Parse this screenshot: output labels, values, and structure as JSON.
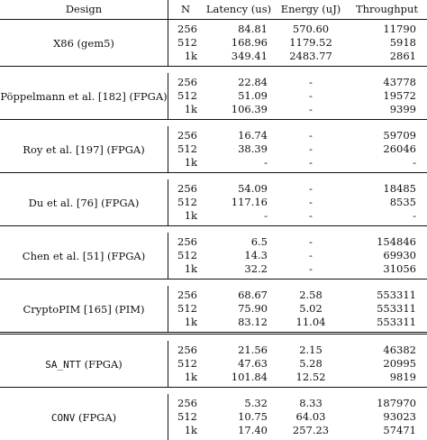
{
  "headers": {
    "design": "Design",
    "n": "N",
    "latency": "Latency (us)",
    "energy": "Energy (uJ)",
    "throughput": "Throughput"
  },
  "groups": [
    {
      "design": "X86 (gem5)",
      "design_mono": "",
      "design_suffix": "",
      "rows": [
        {
          "n": "256",
          "latency": "84.81",
          "energy": "570.60",
          "throughput": "11790"
        },
        {
          "n": "512",
          "latency": "168.96",
          "energy": "1179.52",
          "throughput": "5918"
        },
        {
          "n": "1k",
          "latency": "349.41",
          "energy": "2483.77",
          "throughput": "2861"
        }
      ]
    },
    {
      "design": "Pöppelmann et al. [182] (FPGA)",
      "design_mono": "",
      "design_suffix": "",
      "rows": [
        {
          "n": "256",
          "latency": "22.84",
          "energy": "-",
          "throughput": "43778"
        },
        {
          "n": "512",
          "latency": "51.09",
          "energy": "-",
          "throughput": "19572"
        },
        {
          "n": "1k",
          "latency": "106.39",
          "energy": "-",
          "throughput": "9399"
        }
      ]
    },
    {
      "design": "Roy et al. [197] (FPGA)",
      "design_mono": "",
      "design_suffix": "",
      "rows": [
        {
          "n": "256",
          "latency": "16.74",
          "energy": "-",
          "throughput": "59709"
        },
        {
          "n": "512",
          "latency": "38.39",
          "energy": "-",
          "throughput": "26046"
        },
        {
          "n": "1k",
          "latency": "-",
          "energy": "-",
          "throughput": "-"
        }
      ]
    },
    {
      "design": "Du et al. [76] (FPGA)",
      "design_mono": "",
      "design_suffix": "",
      "rows": [
        {
          "n": "256",
          "latency": "54.09",
          "energy": "-",
          "throughput": "18485"
        },
        {
          "n": "512",
          "latency": "117.16",
          "energy": "-",
          "throughput": "8535"
        },
        {
          "n": "1k",
          "latency": "-",
          "energy": "-",
          "throughput": "-"
        }
      ]
    },
    {
      "design": "Chen et al. [51] (FPGA)",
      "design_mono": "",
      "design_suffix": "",
      "rows": [
        {
          "n": "256",
          "latency": "6.5",
          "energy": "-",
          "throughput": "154846"
        },
        {
          "n": "512",
          "latency": "14.3",
          "energy": "-",
          "throughput": "69930"
        },
        {
          "n": "1k",
          "latency": "32.2",
          "energy": "-",
          "throughput": "31056"
        }
      ]
    },
    {
      "design": "CryptoPIM [165] (PIM)",
      "design_mono": "",
      "design_suffix": "",
      "rows": [
        {
          "n": "256",
          "latency": "68.67",
          "energy": "2.58",
          "throughput": "553311"
        },
        {
          "n": "512",
          "latency": "75.90",
          "energy": "5.02",
          "throughput": "553311"
        },
        {
          "n": "1k",
          "latency": "83.12",
          "energy": "11.04",
          "throughput": "553311"
        }
      ]
    },
    {
      "design": "",
      "design_mono": "SA_NTT",
      "design_suffix": " (FPGA)",
      "rows": [
        {
          "n": "256",
          "latency": "21.56",
          "energy": "2.15",
          "throughput": "46382"
        },
        {
          "n": "512",
          "latency": "47.63",
          "energy": "5.28",
          "throughput": "20995"
        },
        {
          "n": "1k",
          "latency": "101.84",
          "energy": "12.52",
          "throughput": "9819"
        }
      ]
    },
    {
      "design": "",
      "design_mono": "CONV",
      "design_suffix": " (FPGA)",
      "rows": [
        {
          "n": "256",
          "latency": "5.32",
          "energy": "8.33",
          "throughput": "187970"
        },
        {
          "n": "512",
          "latency": "10.75",
          "energy": "64.03",
          "throughput": "93023"
        },
        {
          "n": "1k",
          "latency": "17.40",
          "energy": "257.23",
          "throughput": "57471"
        }
      ]
    }
  ]
}
